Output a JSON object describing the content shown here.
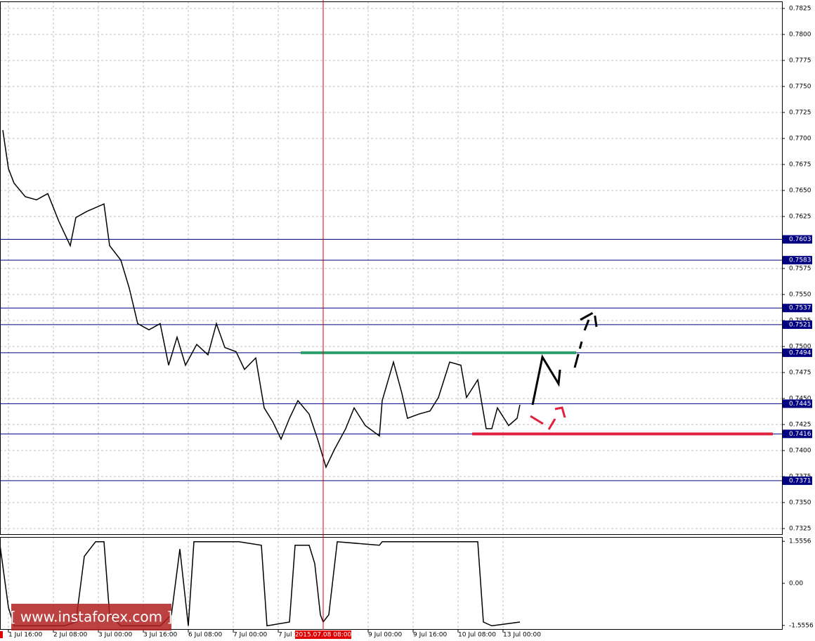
{
  "chart_data": [
    {
      "type": "line",
      "x": [
        6,
        8,
        10,
        14,
        18,
        22,
        26,
        30,
        32,
        36,
        42,
        44,
        48,
        51,
        54,
        58,
        62,
        65,
        68,
        71,
        75,
        79,
        82,
        85,
        89,
        92,
        96,
        99,
        102,
        105,
        108,
        111,
        115,
        118,
        121,
        124,
        128,
        131,
        135,
        140,
        141,
        145,
        148,
        150,
        154,
        158,
        161,
        165,
        169,
        171,
        175,
        178,
        180,
        182,
        186,
        189,
        190
      ],
      "series": [
        {
          "name": "Price",
          "color": "#000000",
          "values": [
            0.7708,
            0.7671,
            0.7657,
            0.7644,
            0.7641,
            0.7647,
            0.762,
            0.7597,
            0.7624,
            0.763,
            0.7637,
            0.7597,
            0.7583,
            0.7556,
            0.7522,
            0.7516,
            0.7522,
            0.7482,
            0.7509,
            0.7482,
            0.7502,
            0.7492,
            0.7522,
            0.7499,
            0.7495,
            0.7478,
            0.7489,
            0.7441,
            0.7428,
            0.7411,
            0.7431,
            0.7448,
            0.7435,
            0.7411,
            0.7384,
            0.7401,
            0.7421,
            0.7441,
            0.7424,
            0.7414,
            0.7448,
            0.7485,
            0.7455,
            0.7431,
            0.7435,
            0.7438,
            0.7451,
            0.7485,
            0.7482,
            0.7451,
            0.7468,
            0.7421,
            0.7421,
            0.7441,
            0.7424,
            0.7431,
            0.7444
          ]
        }
      ],
      "xlim": [
        0,
        283
      ],
      "xticks": [
        {
          "value": 8,
          "label": "1 Jul 16:00"
        },
        {
          "value": 24,
          "label": "2 Jul 08:00"
        },
        {
          "value": 40,
          "label": "3 Jul 00:00"
        },
        {
          "value": 56,
          "label": "3 Jul 16:00"
        },
        {
          "value": 72,
          "label": "6 Jul 08:00"
        },
        {
          "value": 88,
          "label": "7 Jul 00:00"
        },
        {
          "value": 104,
          "label": "7 Jul 1"
        },
        {
          "value": 136,
          "label": "9 Jul 00:00"
        },
        {
          "value": 152,
          "label": "9 Jul 16:00"
        },
        {
          "value": 168,
          "label": "10 Jul 08:00"
        },
        {
          "value": 184,
          "label": "13 Jul 00:00"
        }
      ],
      "cursor": {
        "value": 120,
        "label": "2015.07.08 08:00",
        "color": "#e00000"
      },
      "ylim": [
        0.7325,
        0.7825
      ],
      "yticks": [
        0.7825,
        {
          "value": 0.78,
          "label": "0.7800"
        },
        0.7775,
        {
          "value": 0.775,
          "label": "0.7750"
        },
        0.7725,
        {
          "value": 0.77,
          "label": "0.7700"
        },
        0.7675,
        {
          "value": 0.765,
          "label": "0.7650"
        },
        0.7625,
        0.7575,
        {
          "value": 0.755,
          "label": "0.7550"
        },
        0.7525,
        {
          "value": 0.75,
          "label": "0.7500"
        },
        0.7475,
        {
          "value": 0.745,
          "label": "0.7450"
        },
        0.7425,
        {
          "value": 0.74,
          "label": "0.7400"
        },
        0.7375,
        {
          "value": 0.735,
          "label": "0.7350"
        },
        0.7325
      ],
      "levels": [
        0.7603,
        0.7583,
        0.7537,
        0.7521,
        0.7494,
        0.7445,
        0.7416,
        0.7371
      ],
      "level_color": "#000080",
      "trend_lines": [
        {
          "y": 0.7494,
          "x": [
            112,
            210
          ],
          "color": "#2e9e6e"
        },
        {
          "y": 0.7416,
          "x": [
            173,
            280
          ],
          "color": "#e0203c"
        }
      ],
      "grid": true,
      "watermark": "[ www.instaforex.com ]"
    },
    {
      "type": "line",
      "x": [
        5,
        8,
        10,
        15,
        20,
        28,
        32,
        35,
        39,
        42,
        44,
        48,
        62,
        66,
        69,
        72,
        74,
        78,
        90,
        98,
        100,
        108,
        110,
        115,
        117,
        119,
        120,
        122,
        125,
        140,
        141,
        175,
        177,
        180,
        190
      ],
      "series": [
        {
          "name": "Indicator",
          "color": "#000000",
          "values": [
            1.41,
            -0.89,
            -1.57,
            -1.57,
            -1.57,
            -1.57,
            -1.43,
            1.0,
            1.54,
            1.54,
            -1.16,
            -1.57,
            -1.57,
            -1.16,
            1.27,
            -1.57,
            1.54,
            1.54,
            1.54,
            1.41,
            -1.57,
            -1.43,
            1.41,
            1.41,
            0.73,
            -1.16,
            -1.43,
            -1.16,
            1.54,
            1.41,
            1.54,
            1.54,
            -1.43,
            -1.57,
            -1.43
          ]
        }
      ],
      "xlim": [
        0,
        283
      ],
      "ylim": [
        -1.69,
        1.69
      ],
      "yticks": [
        1.5556,
        {
          "value": 0,
          "label": "0.00"
        },
        -1.5556
      ]
    }
  ]
}
